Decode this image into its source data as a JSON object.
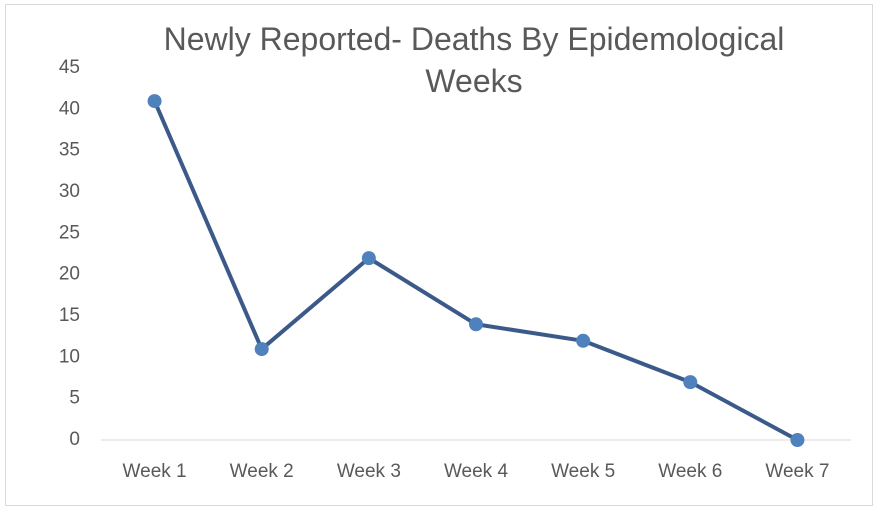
{
  "chart_data": {
    "type": "line",
    "title": "Newly Reported- Deaths By Epidemological Weeks",
    "categories": [
      "Week 1",
      "Week 2",
      "Week 3",
      "Week 4",
      "Week 5",
      "Week 6",
      "Week 7"
    ],
    "values": [
      41,
      11,
      22,
      14,
      12,
      7,
      0
    ],
    "color": "#3b5a89",
    "marker_color": "#4f81bd",
    "ylim": [
      0,
      45
    ],
    "yticks": [
      0,
      5,
      10,
      15,
      20,
      25,
      30,
      35,
      40,
      45
    ],
    "grid": false
  }
}
